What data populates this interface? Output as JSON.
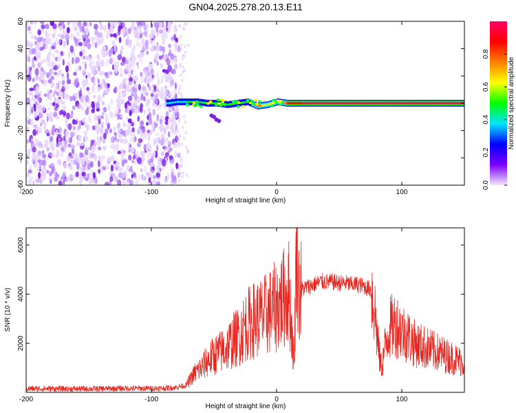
{
  "title": "GN04.2025.278.20.13.E11",
  "chart_data": [
    {
      "type": "heatmap",
      "xlabel": "Height of straight line (km)",
      "ylabel": "Frequency (Hz)",
      "xlim": [
        -200,
        150
      ],
      "ylim": [
        -60,
        60
      ],
      "x_ticks": [
        "-200",
        "-100",
        "0",
        "100"
      ],
      "y_ticks": [
        "-60",
        "-40",
        "-20",
        "0",
        "20",
        "40",
        "60"
      ],
      "colorbar": {
        "label": "Normalized spectral amplitude",
        "range": [
          0,
          1
        ],
        "ticks": [
          "0.0",
          "0.2",
          "0.4",
          "0.6",
          "0.8"
        ],
        "colors": [
          "#f4e6ff",
          "#7a00ff",
          "#0000ff",
          "#00e5ff",
          "#00ff00",
          "#ffff00",
          "#ff8000",
          "#ff0000",
          "#ff0066"
        ]
      },
      "noise_region_x": [
        -200,
        -78
      ],
      "signal_band": [
        {
          "x": -88,
          "y": 0,
          "amp": 0.35
        },
        {
          "x": -80,
          "y": 1,
          "amp": 0.35
        },
        {
          "x": -72,
          "y": 1,
          "amp": 0.45
        },
        {
          "x": -64,
          "y": 1,
          "amp": 0.5
        },
        {
          "x": -56,
          "y": 0,
          "amp": 0.5
        },
        {
          "x": -48,
          "y": 0,
          "amp": 0.45
        },
        {
          "x": -40,
          "y": -1,
          "amp": 0.5
        },
        {
          "x": -32,
          "y": 0,
          "amp": 0.45
        },
        {
          "x": -24,
          "y": 1,
          "amp": 0.5
        },
        {
          "x": -16,
          "y": -2,
          "amp": 0.75
        },
        {
          "x": -8,
          "y": -1,
          "amp": 0.6
        },
        {
          "x": 0,
          "y": 1,
          "amp": 0.6
        },
        {
          "x": 8,
          "y": 0,
          "amp": 0.85
        },
        {
          "x": 20,
          "y": 0,
          "amp": 0.95
        },
        {
          "x": 60,
          "y": 0,
          "amp": 0.95
        },
        {
          "x": 100,
          "y": 0,
          "amp": 0.95
        },
        {
          "x": 150,
          "y": 0,
          "amp": 0.95
        }
      ]
    },
    {
      "type": "line",
      "xlabel": "Height of straight line (km)",
      "ylabel": "SNR (10 * v/v)",
      "xlim": [
        -200,
        150
      ],
      "ylim": [
        0,
        6700
      ],
      "x_ticks": [
        "-200",
        "-100",
        "0",
        "100"
      ],
      "y_ticks": [
        "2000",
        "4000",
        "6000"
      ],
      "series": [
        {
          "color": "#e8261f",
          "x": [
            -200,
            -180,
            -160,
            -140,
            -120,
            -100,
            -90,
            -80,
            -72,
            -68,
            -65,
            -60,
            -55,
            -50,
            -45,
            -40,
            -35,
            -30,
            -25,
            -20,
            -15,
            -10,
            -5,
            0,
            5,
            10,
            14,
            16,
            18,
            20,
            25,
            30,
            35,
            40,
            45,
            50,
            55,
            60,
            65,
            70,
            75,
            78,
            80,
            82,
            84,
            86,
            88,
            90,
            95,
            100,
            105,
            110,
            115,
            120,
            125,
            130,
            135,
            140,
            145,
            150
          ],
          "y": [
            150,
            150,
            140,
            150,
            160,
            160,
            170,
            200,
            300,
            600,
            800,
            1000,
            1300,
            1500,
            1650,
            1800,
            2100,
            2300,
            2700,
            2900,
            3000,
            3100,
            3300,
            3500,
            3800,
            4100,
            1200,
            6600,
            4000,
            4200,
            4300,
            4400,
            4500,
            4500,
            4500,
            4450,
            4450,
            4400,
            4400,
            4300,
            4200,
            3600,
            2500,
            1500,
            1000,
            1700,
            2200,
            2600,
            2800,
            2500,
            2300,
            2000,
            1900,
            1800,
            1700,
            1600,
            1500,
            1400,
            1300,
            1200
          ]
        }
      ]
    }
  ]
}
